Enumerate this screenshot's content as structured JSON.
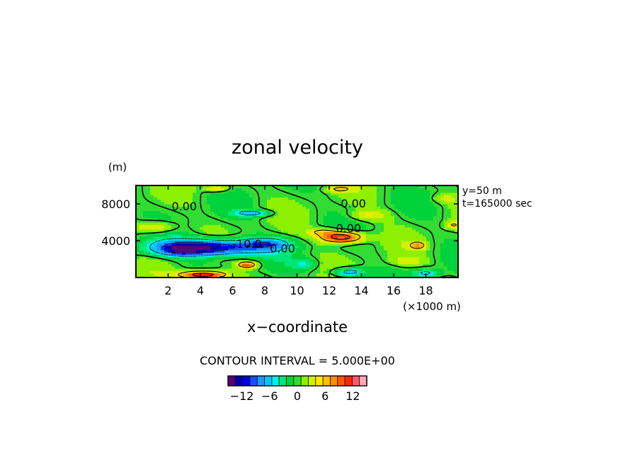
{
  "chart_data": {
    "type": "heatmap",
    "title": "zonal velocity",
    "xlabel": "x−coordinate",
    "x_unit": "(×1000 m)",
    "y_unit": "(m)",
    "xlim": [
      0,
      20
    ],
    "ylim": [
      0,
      10000
    ],
    "x_ticks": [
      2,
      4,
      6,
      8,
      10,
      12,
      14,
      16,
      18
    ],
    "x_tick_labels": [
      "2",
      "4",
      "6",
      "8",
      "10",
      "12",
      "14",
      "16",
      "18"
    ],
    "y_ticks": [
      4000,
      8000
    ],
    "y_tick_labels": [
      "4000",
      "8000"
    ],
    "annotations": [
      "y=50 m",
      "t=165000 sec"
    ],
    "contour_interval_text": "CONTOUR INTERVAL = 5.000E+00",
    "contour_labels": [
      {
        "text": "0.00",
        "x": 3.0,
        "y": 7700
      },
      {
        "text": "0.00",
        "x": 13.5,
        "y": 8000
      },
      {
        "text": "0.00",
        "x": 13.2,
        "y": 5300
      },
      {
        "text": "0.00",
        "x": 9.1,
        "y": 3100
      },
      {
        "text": "-10.0",
        "x": 6.9,
        "y": 3600
      }
    ],
    "grid": false,
    "colorbar": {
      "min": -15,
      "max": 15,
      "colors": [
        "#5a007a",
        "#0000aa",
        "#0000e6",
        "#1450ff",
        "#1e96ff",
        "#00c8ff",
        "#00f0e6",
        "#00e678",
        "#00d23c",
        "#32dc32",
        "#8cf000",
        "#d2f000",
        "#ffe600",
        "#ffbe00",
        "#ff8c00",
        "#ff5a00",
        "#ff2800",
        "#ff5a6e",
        "#ffaab4"
      ],
      "tick_labels": [
        "−12",
        "−6",
        "0",
        "6",
        "12"
      ],
      "tick_values": [
        -12,
        -6,
        0,
        6,
        12
      ]
    },
    "features": [
      {
        "x": 4.4,
        "y": 3300,
        "sx": 3.2,
        "sy": 900,
        "amp": -15
      },
      {
        "x": 8.2,
        "y": 3700,
        "sx": 1.5,
        "sy": 650,
        "amp": -6
      },
      {
        "x": 2.6,
        "y": 3000,
        "sx": 1.3,
        "sy": 550,
        "amp": -5
      },
      {
        "x": 7.3,
        "y": 7000,
        "sx": 1.2,
        "sy": 350,
        "amp": -6
      },
      {
        "x": 12.8,
        "y": 4400,
        "sx": 1.3,
        "sy": 600,
        "amp": 14
      },
      {
        "x": 11.6,
        "y": 5000,
        "sx": 1.0,
        "sy": 400,
        "amp": 5
      },
      {
        "x": 4.2,
        "y": 300,
        "sx": 1.5,
        "sy": 450,
        "amp": 14
      },
      {
        "x": 6.9,
        "y": 1400,
        "sx": 0.6,
        "sy": 350,
        "amp": 10
      },
      {
        "x": 1.2,
        "y": 5500,
        "sx": 1.2,
        "sy": 650,
        "amp": 6
      },
      {
        "x": 5.0,
        "y": 9700,
        "sx": 0.7,
        "sy": 350,
        "amp": 6
      },
      {
        "x": 12.6,
        "y": 9600,
        "sx": 0.8,
        "sy": 350,
        "amp": 5
      },
      {
        "x": 17.5,
        "y": 3500,
        "sx": 0.5,
        "sy": 400,
        "amp": 7
      },
      {
        "x": 19.7,
        "y": 5700,
        "sx": 0.5,
        "sy": 400,
        "amp": 5
      },
      {
        "x": 13.2,
        "y": 600,
        "sx": 1.0,
        "sy": 500,
        "amp": -8
      },
      {
        "x": 18.0,
        "y": 500,
        "sx": 0.8,
        "sy": 450,
        "amp": -6
      },
      {
        "x": 10.5,
        "y": 1500,
        "sx": 0.8,
        "sy": 600,
        "amp": -4
      },
      {
        "x": 14.5,
        "y": 6800,
        "sx": 1.2,
        "sy": 600,
        "amp": 4
      },
      {
        "x": 16.8,
        "y": 1800,
        "sx": 1.0,
        "sy": 500,
        "amp": 3
      },
      {
        "x": 19.2,
        "y": 8600,
        "sx": 0.8,
        "sy": 500,
        "amp": 3
      }
    ]
  }
}
